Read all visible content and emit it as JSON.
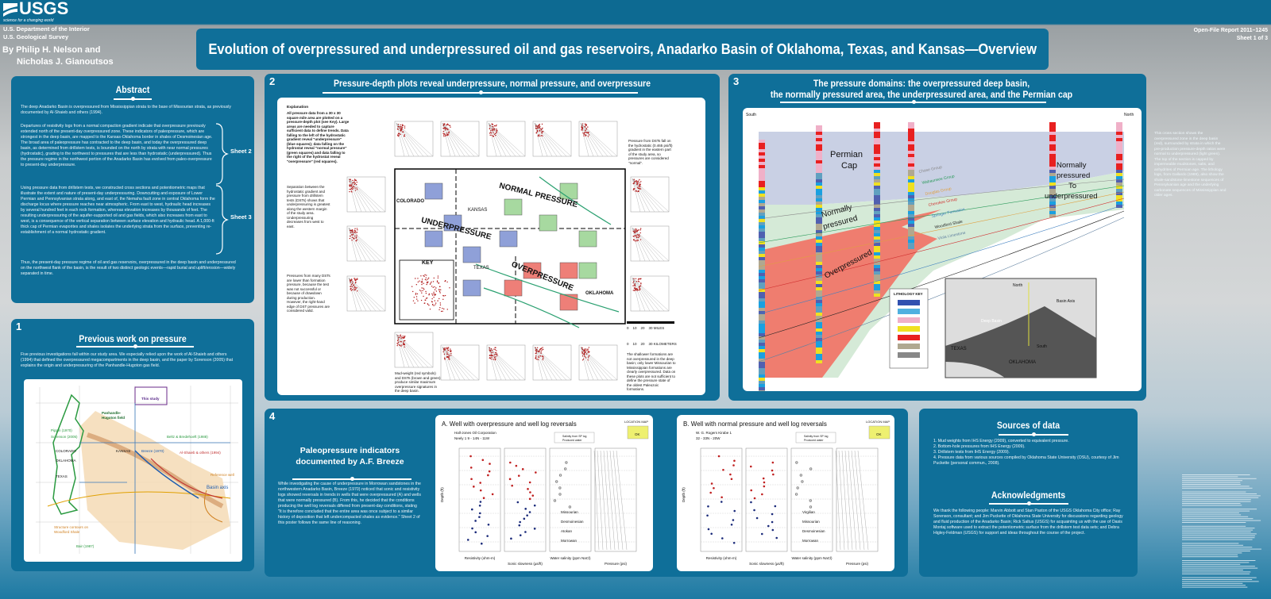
{
  "header": {
    "logo": "USGS",
    "tagline": "science for a changing world",
    "dept": "U.S. Department of the Interior",
    "agency": "U.S. Geological Survey",
    "authors_1": "By Philip H. Nelson and",
    "authors_2": "Nicholas J. Gianoutsos",
    "title": "Evolution of overpressured and underpressured oil and gas reservoirs, Anadarko Basin of Oklahoma, Texas, and Kansas—Overview",
    "report": "Open-File Report 2011–1245",
    "sheet": "Sheet 1 of 3"
  },
  "abstract": {
    "title": "Abstract",
    "p1": "The deep Anadarko Basin is overpressured from Mississippian strata to the base of Missourian strata, as previously documented by Al-Shaieb and others (1994).",
    "p2": "Departures of resistivity logs from a normal compaction gradient indicate that overpressure previously extended north of the present-day overpressured zone. These indicators of paleopressure, which are strongest in the deep basin, are mapped to the Kansas-Oklahoma border in shales of Desmoinesian age. The broad area of paleopressure has contracted to the deep basin, and today the overpressured deep basin, as determined from drillstem tests, is bounded on the north by strata with near normal pressures (hydrostatic), grading to the northwest to pressures that are less than hydrostatic (underpressured). Thus the pressure regime in the northwest portion of the Anadarko Basin has evolved from paleo-overpressure to present-day underpressure.",
    "p3": "Using pressure data from drillstem tests, we constructed cross sections and potentiometric maps that illustrate the extent and nature of present-day underpressuring. Downcutting and exposure of Lower Permian and Pennsylvanian strata along, and east of, the Nemaha fault zone in central Oklahoma form the discharge locus where pressure reaches near atmospheric. From east to west, hydraulic head increases by several hundred feet in each rock formation, whereas elevation increases by thousands of feet. The resulting underpressuring of the aquifer-supported oil and gas fields, which also increases from east to west, is a consequence of the vertical separation between surface elevation and hydraulic head. A 1,000-ft thick cap of Permian evaporites and shales isolates the underlying strata from the surface, preventing re-establishment of a normal hydrostatic gradient.",
    "p4": "Thus, the present-day pressure regime of oil and gas reservoirs, overpressured in the deep basin and underpressured on the northwest flank of the basin, is the result of two distinct geologic events—rapid burial and uplift/erosion—widely separated in time.",
    "sheet2": "Sheet 2",
    "sheet3": "Sheet 3"
  },
  "panel1": {
    "num": "1",
    "title": "Previous work on pressure",
    "text": "Five previous investigations fall within our study area. We especially relied upon the work of Al-Shaieb and others (1994) that defined the overpressured megacompartments in the deep basin, and the paper by Sorenson (2005) that explains the origin and underpressuring of the Panhandle-Hugoton gas field.",
    "map_labels": {
      "study": "This study",
      "hugoton": "Panhandle-Hugoton field",
      "pippin": "Pippin (1970)",
      "sorenson": "Sorenson (2005)",
      "beltz": "Beltz & Bredehoeft (1988)",
      "breeze": "Breeze (1970)",
      "alshaieb": "Al-Shaieb & others (1994)",
      "colorado": "COLORADO",
      "kansas": "KANSAS",
      "oklahoma": "OKLAHOMA",
      "texas": "TEXAS",
      "axis": "Basin axis",
      "refwell": "Reference well",
      "contours": "Structure contours on Woodford Shale",
      "bair": "Bair (1987)"
    }
  },
  "panel2": {
    "num": "2",
    "title": "Pressure-depth plots reveal underpressure, normal pressure, and overpressure",
    "explanation_title": "Explanation",
    "explanation": "All pressure data from a 30 x 30 square mile area are plotted on a pressure-depth plot (see Key). Large areas are needed to capture sufficient data to define trends. Data falling to the left of the hydrostatic gradient reveal \"underpressure\" (blue squares); data falling on the hydrostat reveal \"normal pressure\" (green squares) and data falling to the right of the hydrostat reveal \"overpressure\" (red squares).",
    "note_separation": "Separation between the hydrostatic gradient and pressure from drillstem tests (DSTs) shows that underpressuring is greatest along the western margin of the study area. Underpressuring decreases from west to east.",
    "note_dst": "Pressures from many DSTs are lower than formation pressure, because the test was not successful or because of drawdown during production. However, the right-hand edge of DST pressures are considered valid.",
    "note_mud": "Mud-weight (red symbols) and DSTs (brown and green) produce similar maximum overpressure signatures in the deep basin.",
    "note_east": "Pressure from DSTs fall on the hydrostatic (0.465 psi/ft) gradient in the eastern part of the study area, so pressures are considered \"normal\".",
    "note_shallow": "The shallower formations are not overpressured in the deep basin; only lower Missourian to Mississippian formations are clearly overpressured. Data on these plots are not sufficient to define the pressure state of the oldest Paleozoic formations.",
    "map": {
      "colorado": "COLORADO",
      "kansas": "KANSAS",
      "normal": "NORMAL PRESSURE",
      "under": "UNDERPRESSURE",
      "over": "OVERPRESSURE",
      "texas": "TEXAS",
      "oklahoma": "OKLAHOMA",
      "key": "KEY",
      "depth": "Depth (ft)",
      "pressure": "Pressure (psi)"
    },
    "scale_miles": "0    10    20    30 MILES",
    "scale_km": "0    10    20    30 KILOMETERS",
    "colors": {
      "under": "#8fa0d8",
      "normal": "#a7d9a0",
      "over": "#ee7f78"
    }
  },
  "panel3": {
    "num": "3",
    "title_1": "The pressure domains:  the overpressured deep basin,",
    "title_2": "the normally pressured area, the underpressured area, and the Permian cap",
    "south": "South",
    "north": "North",
    "permian": "Permian",
    "cap": "Cap",
    "normally": "Normally",
    "pressured": "pressured",
    "over": "Overpressured",
    "nu_1": "Normally",
    "nu_2": "pressured",
    "nu_3": "To",
    "nu_4": "underpressured",
    "formations": [
      "Chase Group",
      "Wabaunsee Group",
      "Douglas Group",
      "Cherokee Group",
      "Springer Formation",
      "Woodford Shale",
      "Viola Limestone"
    ],
    "lith_key": "LITHOLOGY KEY",
    "inset": {
      "north": "North",
      "axis": "Basin Axis",
      "deep": "Deep Basin",
      "texas": "TEXAS",
      "south": "South",
      "oklahoma": "OKLAHOMA"
    },
    "side_text": "This cross section shows the overpressured zone in the deep basin (red), surrounded by strata in which the pre-production pressure-depth ratios were normal to underpressured (light green). The top of the section is capped by impermeable mudstones, salts, and anhydrites of Permian age. The lithology logs, from Gallardo (1989), also show the shale-sandstone-limestone sequences of Pennsylvanian age and the underlying carbonate sequences of Mississippian and older ages.",
    "colors": {
      "cap": "#c9d0e4",
      "normal": "#d5ead7",
      "over": "#ef7d6f"
    }
  },
  "panel4": {
    "num": "4",
    "title_1": "Paleopressure indicators",
    "title_2": "documented by A.F. Breeze",
    "text": "While investigating the cause of underpressure in Morrowan sandstones in the northwestern Anadarko Basin, Breeze (1970) noticed that sonic and resistivity logs showed reversals in trends in wells that were overpressured (A) and wells that were normally pressured (B). From this, he decided that the conditions producing the well log reversals differed from present-day conditions, stating \"It is therefore concluded that the entire area was once subject to a similar history of deposition that left undercompacted shales as evidence.\" Sheet 2 of this poster follows the same line of reasoning.",
    "chartA": {
      "title": "A.  Well with overpressure and well log reversals",
      "operator": "Hall-Jones Oil Corporation",
      "well": "Neely 1     9 - 14N - 11W",
      "location_map": "LOCATION MAP",
      "state": "OK",
      "legend": [
        "Salinity from SP log",
        "Produced water"
      ],
      "labels": [
        "Missourian",
        "Desmoinesian",
        "Atokan",
        "Morrowan"
      ]
    },
    "chartB": {
      "title": "B.  Well with normal pressure and well log reversals",
      "operator": "W. G. Rogers  Kirabe 1",
      "well": "32 - 33N - 20W",
      "location_map": "LOCATION MAP",
      "state": "OK",
      "legend": [
        "Salinity from SP log",
        "Produced water"
      ],
      "labels": [
        "Virgilian",
        "Missourian",
        "Desmoinesian",
        "Morrowan"
      ]
    },
    "axes": [
      "Resistivity (ohm-m)",
      "Sonic slowness (µs/ft)",
      "Water salinity (ppm NaCl)",
      "Pressure (psi)"
    ],
    "depth": "Depth (ft)"
  },
  "sources": {
    "title": "Sources of data",
    "items": [
      "1.  Mud weights from IHS Energy (2009), converted to equivalent pressure.",
      "2.  Bottom-hole pressures from IHS Energy (2009).",
      "3.  Drillstem tests from IHS Energy (2009).",
      "4.  Pressure data from various sources compiled by Oklahoma State University (OSU), courtesy of Jim Puckette (personal commun., 2008)."
    ],
    "ack_title": "Acknowledgments",
    "ack": "We thank the following people: Marvin Abbott and Stan Paxton of the USGS Oklahoma City office; Ray Sorenson, consultant; and Jim Puckette of Oklahoma State University for discussions regarding geology and fluid production of the Anadarko Basin; Rick Saltus (USGS) for acquainting us with the use of Oasis Montaj software used to extract the potentiometric surface from the drillstem test data sets; and Debra Higley-Feldman (USGS) for support and ideas throughout the course of the project."
  }
}
